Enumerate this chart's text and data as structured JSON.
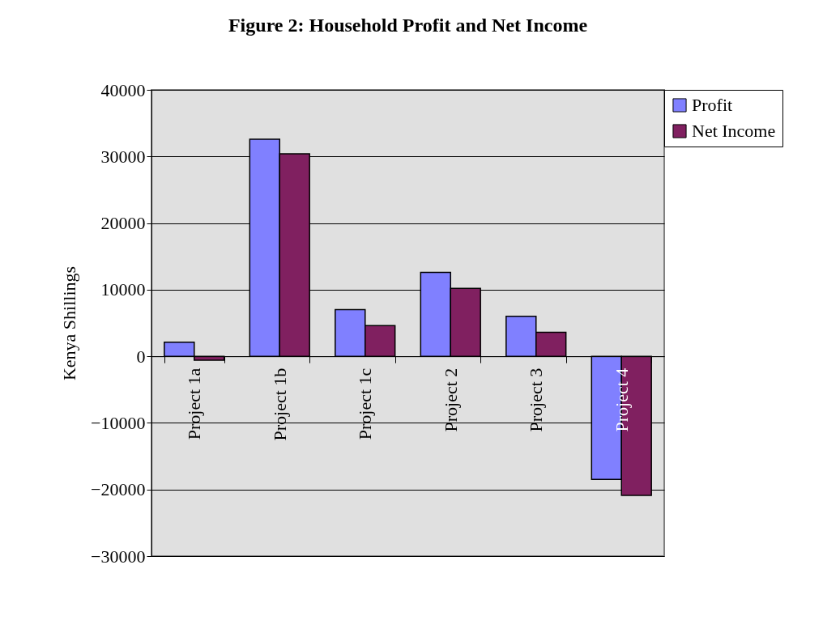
{
  "chart_data": {
    "type": "bar",
    "title": "Figure 2: Household Profit and Net Income",
    "ylabel": "Kenya Shillings",
    "categories": [
      "Project 1a",
      "Project 1b",
      "Project 1c",
      "Project 2",
      "Project 3",
      "Project 4"
    ],
    "series": [
      {
        "name": "Profit",
        "color": "#8080ff",
        "values": [
          2100,
          32600,
          7000,
          12600,
          6000,
          -18500
        ]
      },
      {
        "name": "Net Income",
        "color": "#802060",
        "values": [
          -600,
          30400,
          4600,
          10200,
          3600,
          -20900
        ]
      }
    ],
    "ylim": [
      -30000,
      40000
    ],
    "yticks": [
      -30000,
      -20000,
      -10000,
      0,
      10000,
      20000,
      30000,
      40000
    ],
    "grid": "y",
    "legend": "right"
  }
}
